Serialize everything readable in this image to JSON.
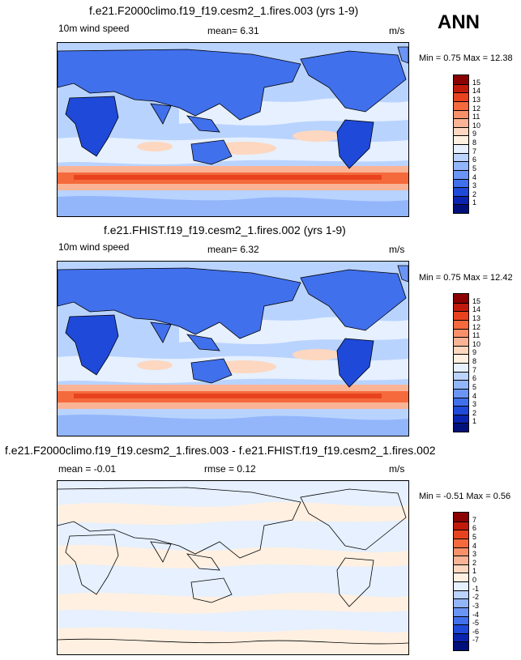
{
  "season": "ANN",
  "panels": [
    {
      "title": "f.e21.F2000climo.f19_f19.cesm2_1.fires.003 (yrs 1-9)",
      "left_label": "10m wind speed",
      "center_label": "mean=  6.31",
      "units": "m/s",
      "minmax": "Min =  0.75 Max =  12.38",
      "background": "#b9d3ff",
      "cbar_labels": [
        "15",
        "14",
        "13",
        "12",
        "11",
        "10",
        "9",
        "8",
        "7",
        "6",
        "5",
        "4",
        "3",
        "2",
        "1"
      ],
      "cbar_colors": [
        "#8b0000",
        "#c21a0a",
        "#e8431e",
        "#f56a3c",
        "#f8916a",
        "#fab495",
        "#fdd7bf",
        "#fff0e1",
        "#e6f0ff",
        "#bcd3fd",
        "#93b6fb",
        "#6b95f5",
        "#4170ec",
        "#1f49d8",
        "#0a24b0",
        "#00107a"
      ]
    },
    {
      "title": "f.e21.FHIST.f19_f19.cesm2_1.fires.002 (yrs 1-9)",
      "left_label": "10m wind speed",
      "center_label": "mean=  6.32",
      "units": "m/s",
      "minmax": "Min =  0.75 Max =  12.42",
      "background": "#b9d3ff",
      "cbar_labels": [
        "15",
        "14",
        "13",
        "12",
        "11",
        "10",
        "9",
        "8",
        "7",
        "6",
        "5",
        "4",
        "3",
        "2",
        "1"
      ],
      "cbar_colors": [
        "#8b0000",
        "#c21a0a",
        "#e8431e",
        "#f56a3c",
        "#f8916a",
        "#fab495",
        "#fdd7bf",
        "#fff0e1",
        "#e6f0ff",
        "#bcd3fd",
        "#93b6fb",
        "#6b95f5",
        "#4170ec",
        "#1f49d8",
        "#0a24b0",
        "#00107a"
      ]
    },
    {
      "title": "f.e21.F2000climo.f19_f19.cesm2_1.fires.003 - f.e21.FHIST.f19_f19.cesm2_1.fires.002",
      "left_label": "mean =  -0.01",
      "center_label": "rmse =  0.12",
      "units": "m/s",
      "minmax": "Min = -0.51 Max =  0.56",
      "background": "#e6f0ff",
      "cbar_labels": [
        "7",
        "6",
        "5",
        "4",
        "3",
        "2",
        "1",
        "0",
        "-1",
        "-2",
        "-3",
        "-4",
        "-5",
        "-6",
        "-7"
      ],
      "cbar_colors": [
        "#8b0000",
        "#c21a0a",
        "#e8431e",
        "#f56a3c",
        "#f8916a",
        "#fab495",
        "#fdd7bf",
        "#fff0e1",
        "#e6f0ff",
        "#bcd3fd",
        "#93b6fb",
        "#6b95f5",
        "#4170ec",
        "#1f49d8",
        "#0a24b0",
        "#00107a"
      ]
    }
  ]
}
